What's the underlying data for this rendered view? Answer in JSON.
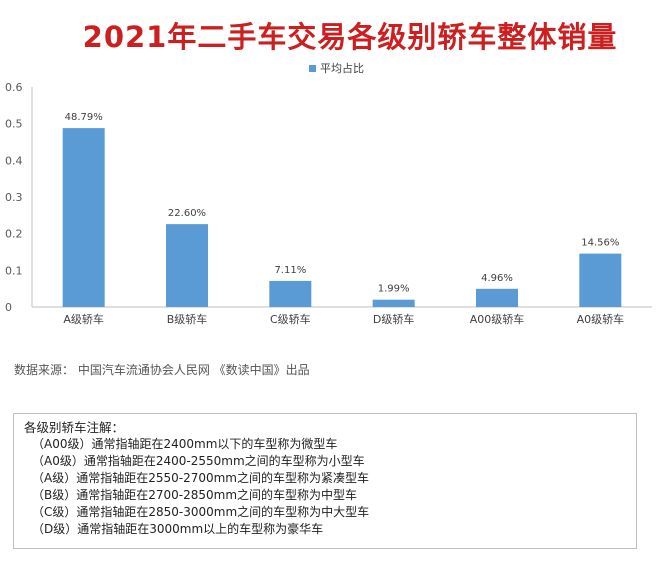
{
  "colors": {
    "bar": "#5b9bd5",
    "title": "#cc1f1f",
    "axis": "#bfbfbf"
  },
  "chart_data": {
    "type": "bar",
    "title": "2021年二手车交易各级别轿车整体销量",
    "legend": "平均占比",
    "legend_position": "top",
    "categories": [
      "A级轿车",
      "B级轿车",
      "C级轿车",
      "D级轿车",
      "A00级轿车",
      "A0级轿车"
    ],
    "series": [
      {
        "name": "平均占比",
        "values": [
          0.4879,
          0.226,
          0.0711,
          0.0199,
          0.0496,
          0.1456
        ]
      }
    ],
    "data_labels": [
      "48.79%",
      "22.60%",
      "7.11%",
      "1.99%",
      "4.96%",
      "14.56%"
    ],
    "yticks": [
      "0",
      "0.1",
      "0.2",
      "0.3",
      "0.4",
      "0.5",
      "0.6"
    ],
    "ylim": [
      0,
      0.6
    ],
    "grid": false
  },
  "source": "数据来源：  中国汽车流通协会人民网 《数读中国》出品",
  "notes": {
    "heading": "各级别轿车注解：",
    "lines": [
      "（A00级）通常指轴距在2400mm以下的车型称为微型车",
      "（A0级）通常指轴距在2400-2550mm之间的车型称为小型车",
      "（A级）通常指轴距在2550-2700mm之间的车型称为紧凑型车",
      "（B级）通常指轴距在2700-2850mm之间的车型称为中型车",
      "（C级）通常指轴距在2850-3000mm之间的车型称为中大型车",
      "（D级）通常指轴距在3000mm以上的车型称为豪华车"
    ]
  }
}
